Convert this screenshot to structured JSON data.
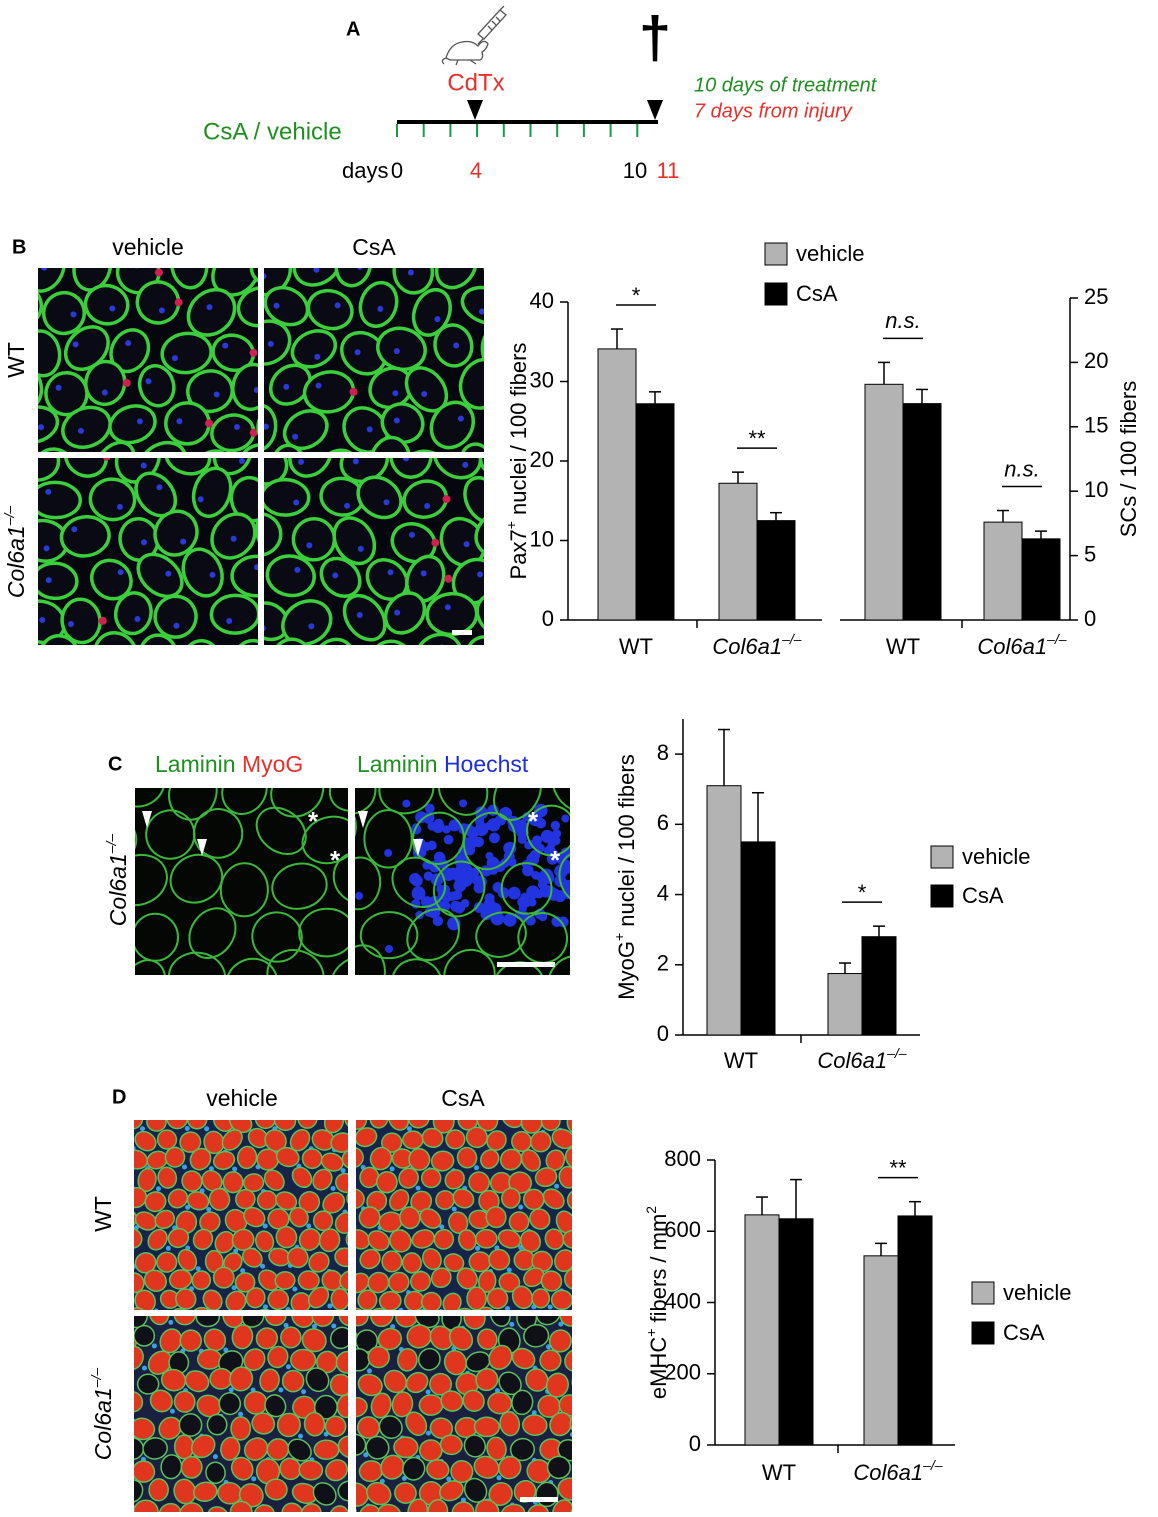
{
  "panels": {
    "a": "A",
    "b": "B",
    "c": "C",
    "d": "D"
  },
  "timeline": {
    "injection": "CdTx",
    "death_mark": "†",
    "treatment_label": "CsA / vehicle",
    "axis_label": "days",
    "day_labels": [
      "0",
      "4",
      "10",
      "11"
    ],
    "notes": [
      "10 days of treatment",
      "7 days from injury"
    ]
  },
  "micrographs": {
    "b": {
      "columns": [
        "vehicle",
        "CsA"
      ],
      "rows": [
        "WT",
        {
          "base": "Col6a1",
          "sup": "–/–"
        }
      ]
    },
    "c": {
      "stains": [
        [
          "Laminin",
          "MyoG"
        ],
        [
          "Laminin",
          "Hoechst"
        ]
      ],
      "rows": [
        {
          "base": "Col6a1",
          "sup": "–/–"
        }
      ],
      "marker": "*"
    },
    "d": {
      "columns": [
        "vehicle",
        "CsA"
      ],
      "rows": [
        "WT",
        {
          "base": "Col6a1",
          "sup": "–/–"
        }
      ]
    }
  },
  "chart_data": [
    {
      "type": "bar",
      "ylabel": {
        "pre": "Pax7",
        "sup": "+",
        "post": " nuclei / 100 fibers"
      },
      "categories": [
        "WT",
        {
          "base": "Col6a1",
          "sup": "–/–"
        }
      ],
      "series": [
        {
          "name": "vehicle",
          "color": "#b3b3b3",
          "values": [
            34.1,
            17.2
          ],
          "errors": [
            2.5,
            1.4
          ]
        },
        {
          "name": "CsA",
          "color": "#000000",
          "values": [
            27.2,
            12.5
          ],
          "errors": [
            1.5,
            1.0
          ]
        }
      ],
      "significance": [
        "*",
        "**"
      ],
      "ylim": [
        0,
        40
      ],
      "yticks": [
        0,
        10,
        20,
        30,
        40
      ]
    },
    {
      "type": "bar",
      "ylabel": "SCs / 100 fibers",
      "axis_side": "right",
      "categories": [
        "WT",
        {
          "base": "Col6a1",
          "sup": "–/–"
        }
      ],
      "series": [
        {
          "color": "#b3b3b3",
          "values": [
            18.3,
            7.6
          ],
          "errors": [
            1.7,
            0.9
          ]
        },
        {
          "color": "#000000",
          "values": [
            16.8,
            6.3
          ],
          "errors": [
            1.1,
            0.6
          ]
        }
      ],
      "significance": [
        "n.s.",
        "n.s."
      ],
      "ylim": [
        0,
        25
      ],
      "yticks": [
        0,
        5,
        10,
        15,
        20,
        25
      ]
    },
    {
      "type": "bar",
      "ylabel": {
        "pre": "MyoG",
        "sup": "+",
        "post": " nuclei / 100 fibers"
      },
      "categories": [
        "WT",
        {
          "base": "Col6a1",
          "sup": "–/–"
        }
      ],
      "series": [
        {
          "name": "vehicle",
          "color": "#b3b3b3",
          "values": [
            7.1,
            1.75
          ],
          "errors": [
            1.6,
            0.3
          ]
        },
        {
          "name": "CsA",
          "color": "#000000",
          "values": [
            5.5,
            2.8
          ],
          "errors": [
            1.4,
            0.3
          ]
        }
      ],
      "significance": [
        null,
        "*"
      ],
      "ylim": [
        0,
        9
      ],
      "yticks": [
        0,
        2,
        4,
        6,
        8
      ]
    },
    {
      "type": "bar",
      "ylabel": {
        "pre": "eMHC",
        "sup": "+",
        "post": " fibers / mm",
        "sup2": "2"
      },
      "categories": [
        "WT",
        {
          "base": "Col6a1",
          "sup": "–/–"
        }
      ],
      "series": [
        {
          "name": "vehicle",
          "color": "#b3b3b3",
          "values": [
            646,
            531
          ],
          "errors": [
            50,
            35
          ]
        },
        {
          "name": "CsA",
          "color": "#000000",
          "values": [
            635,
            643
          ],
          "errors": [
            110,
            40
          ]
        }
      ],
      "significance": [
        null,
        "**"
      ],
      "ylim": [
        0,
        800
      ],
      "yticks": [
        0,
        200,
        400,
        600,
        800
      ]
    }
  ]
}
